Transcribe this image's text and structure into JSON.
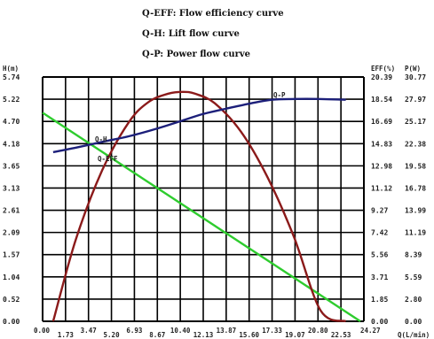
{
  "legend": [
    "Q-EFF: Flow efficiency curve",
    "Q-H: Lift flow curve",
    "Q-P: Power flow curve"
  ],
  "chart_data": {
    "type": "line",
    "xlabel": "Q(L/min)",
    "ylabel_left": "H(m)",
    "ylabel_right1": "EFF(%)",
    "ylabel_right2": "P(W)",
    "xlim": [
      0,
      24.27
    ],
    "ylim_left": [
      0,
      5.74
    ],
    "ylim_eff": [
      0,
      20.39
    ],
    "ylim_p": [
      0,
      30.77
    ],
    "x_ticks": [
      "0.00",
      "1.73",
      "3.47",
      "5.20",
      "6.93",
      "8.67",
      "10.40",
      "12.13",
      "13.87",
      "15.60",
      "17.33",
      "19.07",
      "20.80",
      "22.53",
      "24.27"
    ],
    "y_left_ticks": [
      "0.00",
      "0.52",
      "1.04",
      "1.57",
      "2.09",
      "2.61",
      "3.13",
      "3.65",
      "4.18",
      "4.70",
      "5.22",
      "5.74"
    ],
    "y_eff_ticks": [
      "0.00",
      "1.85",
      "3.71",
      "5.56",
      "7.42",
      "9.27",
      "11.12",
      "12.98",
      "14.83",
      "16.69",
      "18.54",
      "20.39"
    ],
    "y_p_ticks": [
      "0.00",
      "2.80",
      "5.59",
      "8.39",
      "11.19",
      "13.99",
      "16.78",
      "19.58",
      "22.38",
      "25.17",
      "27.97",
      "30.77"
    ],
    "series": [
      {
        "name": "Q-H",
        "label": "Q-H",
        "axis": "H",
        "color": "#2ecc2e",
        "x": [
          0,
          24.0
        ],
        "y": [
          4.9,
          0.0
        ]
      },
      {
        "name": "Q-EFF",
        "label": "Q-EFF",
        "axis": "EFF",
        "color": "#8b1a1a",
        "x": [
          0.8,
          2.5,
          4.5,
          6.5,
          8.0,
          9.5,
          10.6,
          11.5,
          13.0,
          15.0,
          17.0,
          19.0,
          21.0,
          22.9
        ],
        "y": [
          0.0,
          6.8,
          12.6,
          16.6,
          18.3,
          19.0,
          19.15,
          19.0,
          18.2,
          15.8,
          12.0,
          7.0,
          0.9,
          0.0
        ]
      },
      {
        "name": "Q-P",
        "label": "Q-P",
        "axis": "P",
        "color": "#1c1f7a",
        "x": [
          0.8,
          2.6,
          4.5,
          6.5,
          8.7,
          10.4,
          12.1,
          13.9,
          15.6,
          17.3,
          19.1,
          20.8,
          22.9
        ],
        "y": [
          21.3,
          21.9,
          22.6,
          23.3,
          24.3,
          25.2,
          26.1,
          26.8,
          27.4,
          27.9,
          28.0,
          28.0,
          27.9
        ]
      }
    ]
  }
}
